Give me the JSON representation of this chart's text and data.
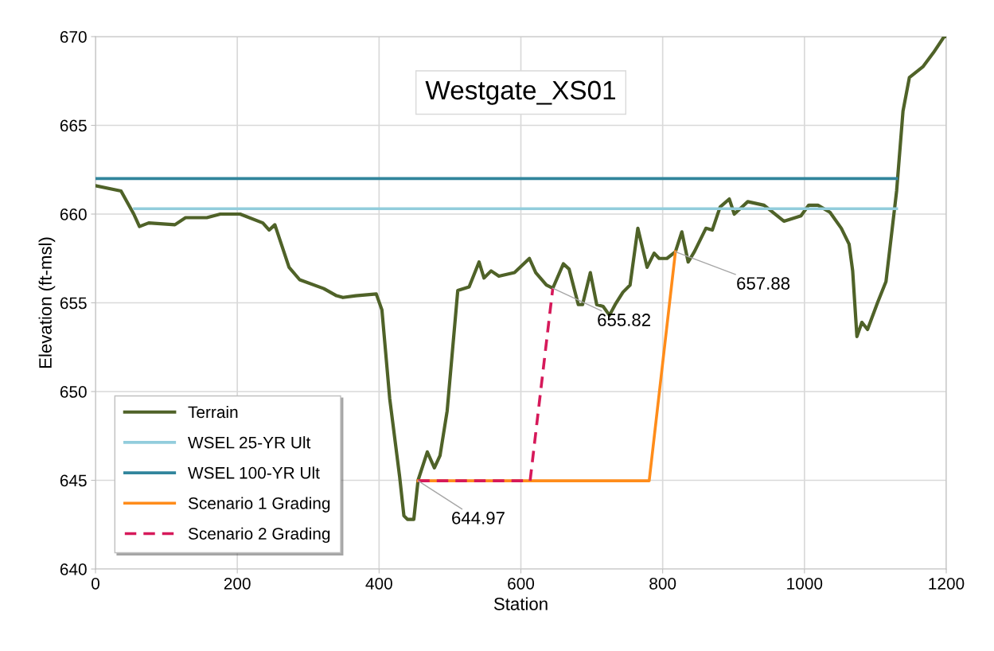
{
  "chart_data": {
    "type": "line",
    "title": "Westgate_XS01",
    "xlabel": "Station",
    "ylabel": "Elevation (ft-msl)",
    "xlim": [
      0,
      1200
    ],
    "xticks": [
      0,
      200,
      400,
      600,
      800,
      1000,
      1200
    ],
    "ylim": [
      640,
      670
    ],
    "yticks": [
      640,
      645,
      650,
      655,
      660,
      665,
      670
    ],
    "grid": true,
    "legend": "bottom left",
    "marker": "none",
    "series": [
      {
        "name": "Terrain",
        "color": "#4f6228",
        "line_style": "solid",
        "x": [
          0,
          36,
          54,
          62,
          75,
          112,
          127,
          157,
          176,
          204,
          236,
          245,
          253,
          273,
          288,
          322,
          340,
          349,
          367,
          396,
          404,
          415,
          429,
          435,
          440,
          449,
          455,
          468,
          478,
          486,
          496,
          511,
          527,
          541,
          548,
          558,
          569,
          591,
          612,
          621,
          636,
          645,
          660,
          668,
          681,
          687,
          698,
          707,
          716,
          725,
          733,
          744,
          754,
          765,
          771,
          778,
          788,
          795,
          806,
          818,
          827,
          836,
          845,
          861,
          870,
          881,
          894,
          901,
          920,
          943,
          971,
          995,
          1006,
          1019,
          1036,
          1052,
          1063,
          1068,
          1074,
          1081,
          1089,
          1103,
          1115,
          1130,
          1139,
          1148,
          1167,
          1182,
          1197,
          1200
        ],
        "values": [
          661.6,
          661.3,
          660.0,
          659.3,
          659.5,
          659.4,
          659.8,
          659.8,
          660.0,
          660.0,
          659.5,
          659.1,
          659.4,
          657.0,
          656.3,
          655.8,
          655.4,
          655.3,
          655.4,
          655.5,
          654.6,
          649.6,
          645.2,
          643.0,
          642.8,
          642.8,
          645.0,
          646.6,
          645.7,
          646.4,
          648.9,
          655.7,
          655.9,
          657.3,
          656.4,
          656.8,
          656.5,
          656.7,
          657.5,
          656.7,
          656.0,
          655.82,
          657.2,
          656.9,
          654.9,
          654.9,
          656.7,
          654.9,
          654.8,
          654.3,
          654.9,
          655.6,
          656.0,
          659.2,
          658.2,
          657.0,
          657.8,
          657.5,
          657.5,
          657.88,
          659.0,
          657.3,
          657.9,
          659.2,
          659.1,
          660.4,
          660.85,
          660.0,
          660.7,
          660.5,
          659.6,
          659.9,
          660.5,
          660.5,
          660.1,
          659.2,
          658.3,
          656.8,
          653.1,
          653.9,
          653.5,
          655.0,
          656.2,
          661.3,
          665.8,
          667.7,
          668.3,
          669.1,
          670.0,
          670.0
        ]
      },
      {
        "name": "WSEL 25-YR Ult",
        "color": "#92cddc",
        "line_style": "solid",
        "x": [
          55,
          1130
        ],
        "values": [
          660.3,
          660.3
        ]
      },
      {
        "name": "WSEL 100-YR Ult",
        "color": "#31859c",
        "line_style": "solid",
        "x": [
          0,
          1130
        ],
        "values": [
          662.0,
          662.0
        ]
      },
      {
        "name": "Scenario 1 Grading",
        "color": "#ff8c1a",
        "line_style": "solid",
        "x": [
          455,
          781,
          818
        ],
        "values": [
          644.97,
          644.97,
          657.88
        ]
      },
      {
        "name": "Scenario 2 Grading",
        "color": "#d6195a",
        "line_style": "dashed",
        "x": [
          455,
          613,
          645
        ],
        "values": [
          644.97,
          644.97,
          655.82
        ]
      }
    ],
    "annotations": [
      {
        "text": "644.97",
        "x": 455,
        "y": 644.97
      },
      {
        "text": "655.82",
        "x": 645,
        "y": 655.82
      },
      {
        "text": "657.88",
        "x": 818,
        "y": 657.88
      }
    ]
  }
}
